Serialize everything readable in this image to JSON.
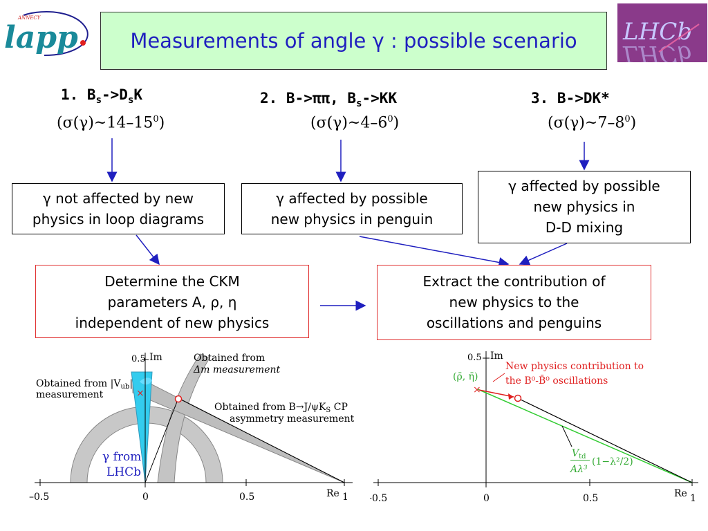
{
  "logos": {
    "lapp": {
      "main": "lapp",
      "small": "ANNECY"
    },
    "lhcb": {
      "main": "LHCb"
    }
  },
  "title": "Measurements of angle γ : possible scenario",
  "scenarios": [
    {
      "label_pre": "1. B",
      "label_sub1": "s",
      "label_mid": "->D",
      "label_sub2": "s",
      "label_post": "K",
      "sigma": "(σ(γ)~14–15",
      "sigma_sup": "0",
      "sigma_end": ")"
    },
    {
      "label_pre": "2. B->ππ, B",
      "label_sub1": "s",
      "label_post": "->KK",
      "sigma": "(σ(γ)~4–6",
      "sigma_sup": "0",
      "sigma_end": ")"
    },
    {
      "label_pre": "3. B->DK*",
      "sigma": "(σ(γ)~7–8",
      "sigma_sup": "0",
      "sigma_end": ")"
    }
  ],
  "boxes": {
    "b1": [
      "γ not affected by new",
      "physics in loop diagrams"
    ],
    "b2": [
      "γ affected by possible",
      "new physics in penguin"
    ],
    "b3": [
      "γ affected by possible",
      "new physics in",
      "D-D mixing"
    ],
    "ckm": [
      "Determine the CKM",
      "parameters A, ρ, η",
      "independent of new physics"
    ],
    "np": [
      "Extract the contribution of",
      "new physics to the",
      "oscillations and penguins"
    ]
  },
  "plot_left": {
    "axis_im": "Im",
    "axis_re": "Re",
    "tick_05_y": "0.5",
    "x_ticks": [
      "–0.5",
      "0",
      "0.5",
      "1"
    ],
    "ann_vub_1": "Obtained from |V",
    "ann_vub_sub": "ub",
    "ann_vub_2": "|",
    "ann_vub_3": "measurement",
    "ann_dm_1": "Obtained from",
    "ann_dm_2": "Δm measurement",
    "ann_cp_1": "Obtained from B→J/ψK",
    "ann_cp_sub": "S",
    "ann_cp_2": " CP",
    "ann_cp_3": "asymmetry measurement",
    "ann_gamma_1": "γ from",
    "ann_gamma_2": "LHCb"
  },
  "plot_right": {
    "axis_im": "Im",
    "axis_re": "Re",
    "tick_05_y": "0.5",
    "x_ticks": [
      "–0.5",
      "0",
      "0.5",
      "1"
    ],
    "rho_eta": "(ρ̄, η̄)",
    "np_1": "New physics contribution to",
    "np_2": "the B⁰-B̄⁰ oscillations",
    "vtd_num": "V",
    "vtd_sub": "td",
    "vtd_den": "Aλ³",
    "vtd_rest": "(1−λ²/2)"
  }
}
